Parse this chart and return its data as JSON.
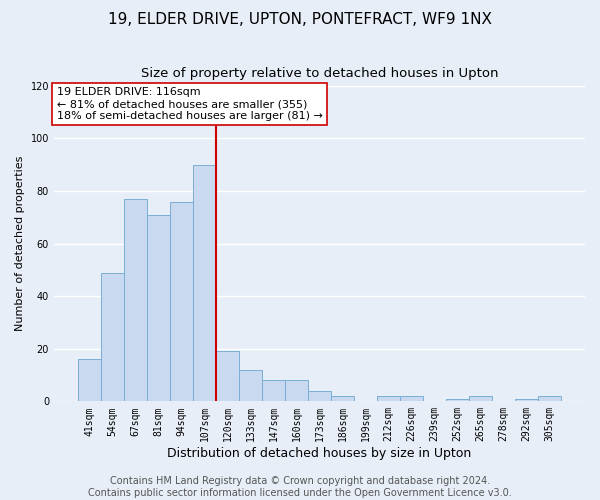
{
  "title": "19, ELDER DRIVE, UPTON, PONTEFRACT, WF9 1NX",
  "subtitle": "Size of property relative to detached houses in Upton",
  "xlabel": "Distribution of detached houses by size in Upton",
  "ylabel": "Number of detached properties",
  "categories": [
    "41sqm",
    "54sqm",
    "67sqm",
    "81sqm",
    "94sqm",
    "107sqm",
    "120sqm",
    "133sqm",
    "147sqm",
    "160sqm",
    "173sqm",
    "186sqm",
    "199sqm",
    "212sqm",
    "226sqm",
    "239sqm",
    "252sqm",
    "265sqm",
    "278sqm",
    "292sqm",
    "305sqm"
  ],
  "values": [
    16,
    49,
    77,
    71,
    76,
    90,
    19,
    12,
    8,
    8,
    4,
    2,
    0,
    2,
    2,
    0,
    1,
    2,
    0,
    1,
    2
  ],
  "bar_color": "#c9d9f0",
  "bar_edge_color": "#7aaed6",
  "vline_color": "#cc0000",
  "vline_x": 5.5,
  "ylim": [
    0,
    120
  ],
  "yticks": [
    0,
    20,
    40,
    60,
    80,
    100,
    120
  ],
  "annotation_title": "19 ELDER DRIVE: 116sqm",
  "annotation_line1": "← 81% of detached houses are smaller (355)",
  "annotation_line2": "18% of semi-detached houses are larger (81) →",
  "annotation_box_color": "#ffffff",
  "annotation_box_edgecolor": "#cc0000",
  "footer1": "Contains HM Land Registry data © Crown copyright and database right 2024.",
  "footer2": "Contains public sector information licensed under the Open Government Licence v3.0.",
  "background_color": "#e8eef8",
  "plot_bg_color": "#e8eef8",
  "grid_color": "#ffffff",
  "title_fontsize": 11,
  "subtitle_fontsize": 9.5,
  "ylabel_fontsize": 8,
  "xlabel_fontsize": 9,
  "tick_fontsize": 7,
  "footer_fontsize": 7,
  "annot_fontsize": 8
}
